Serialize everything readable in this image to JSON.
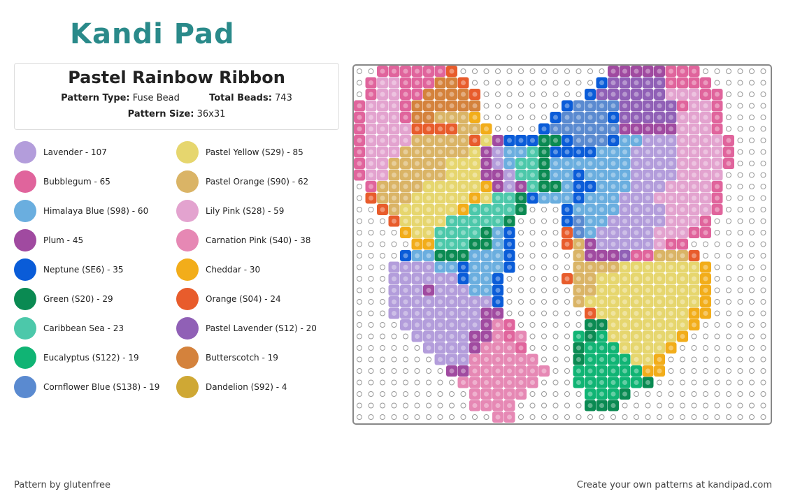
{
  "logo": "Kandi Pad",
  "header": {
    "title": "Pastel Rainbow Ribbon",
    "pattern_type_label": "Pattern Type:",
    "pattern_type": "Fuse Bead",
    "total_beads_label": "Total Beads:",
    "total_beads": "743",
    "pattern_size_label": "Pattern Size:",
    "pattern_size": "36x31"
  },
  "legend": [
    {
      "label": "Lavender - 107",
      "color": "#b39ddb"
    },
    {
      "label": "Pastel Yellow (S29) - 85",
      "color": "#e6d66e"
    },
    {
      "label": "Bubblegum - 65",
      "color": "#e0649c"
    },
    {
      "label": "Pastel Orange (S90) - 62",
      "color": "#dab466"
    },
    {
      "label": "Himalaya Blue (S98) - 60",
      "color": "#6aaedf"
    },
    {
      "label": "Lily Pink (S28) - 59",
      "color": "#e3a3cf"
    },
    {
      "label": "Plum - 45",
      "color": "#a04aa0"
    },
    {
      "label": "Carnation Pink (S40) - 38",
      "color": "#e688b4"
    },
    {
      "label": "Neptune (SE6) - 35",
      "color": "#0a5cd8"
    },
    {
      "label": "Cheddar - 30",
      "color": "#f2ad1a"
    },
    {
      "label": "Green (S20) - 29",
      "color": "#0a8a52"
    },
    {
      "label": "Orange (S04) - 24",
      "color": "#e85c2c"
    },
    {
      "label": "Caribbean Sea - 23",
      "color": "#4cc8aa"
    },
    {
      "label": "Pastel Lavender (S12) - 20",
      "color": "#9060b6"
    },
    {
      "label": "Eucalyptus (S122) - 19",
      "color": "#10b474"
    },
    {
      "label": "Butterscotch - 19",
      "color": "#d4823c"
    },
    {
      "label": "Cornflower Blue (S138) - 19",
      "color": "#5a8ad0"
    },
    {
      "label": "Dandelion (S92) - 4",
      "color": "#cfa834"
    }
  ],
  "footer": {
    "author": "Pattern by glutenfree",
    "cta": "Create your own patterns at kandipad.com"
  }
}
